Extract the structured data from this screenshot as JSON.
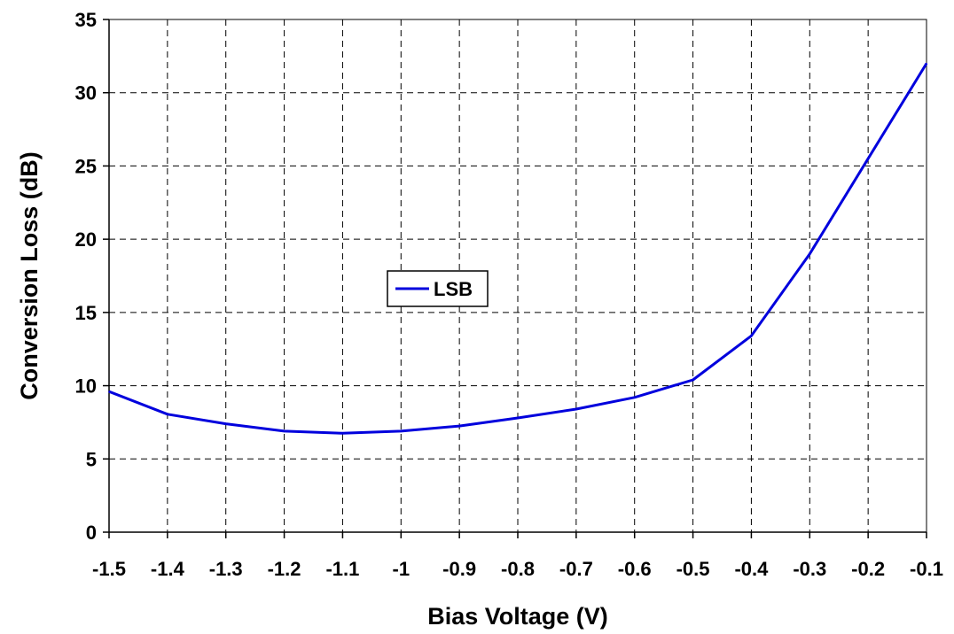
{
  "chart_data": {
    "type": "line",
    "title": "",
    "xlabel": "Bias Voltage (V)",
    "ylabel": "Conversion Loss (dB)",
    "xlim": [
      -1.5,
      -0.1
    ],
    "ylim": [
      0,
      35
    ],
    "x_tick_labels": [
      "-1.5",
      "-1.4",
      "-1.3",
      "-1.2",
      "-1.1",
      "-1",
      "-0.9",
      "-0.8",
      "-0.7",
      "-0.6",
      "-0.5",
      "-0.4",
      "-0.3",
      "-0.2",
      "-0.1"
    ],
    "y_tick_labels": [
      "0",
      "5",
      "10",
      "15",
      "20",
      "25",
      "30",
      "35"
    ],
    "grid": true,
    "legend_position": "center-left",
    "series": [
      {
        "name": "LSB",
        "color": "#0000dd",
        "x": [
          -1.5,
          -1.4,
          -1.3,
          -1.2,
          -1.1,
          -1.0,
          -0.9,
          -0.8,
          -0.7,
          -0.6,
          -0.5,
          -0.4,
          -0.3,
          -0.2,
          -0.1
        ],
        "y": [
          9.6,
          8.05,
          7.4,
          6.9,
          6.75,
          6.9,
          7.25,
          7.8,
          8.4,
          9.2,
          10.4,
          13.4,
          19.0,
          25.5,
          32.0
        ]
      }
    ]
  }
}
